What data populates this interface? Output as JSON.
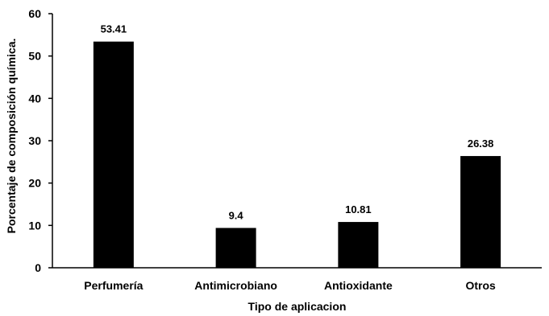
{
  "chart_data": {
    "type": "bar",
    "title": "",
    "xlabel": "Tipo de aplicacion",
    "ylabel": "Porcentaje de composición química.",
    "categories": [
      "Perfumería",
      "Antimicrobiano",
      "Antioxidante",
      "Otros"
    ],
    "values": [
      53.41,
      9.4,
      10.81,
      26.38
    ],
    "data_labels": [
      "53.41",
      "9.4",
      "10.81",
      "26.38"
    ],
    "ylim": [
      0,
      60
    ],
    "yticks": [
      0,
      10,
      20,
      30,
      40,
      50,
      60
    ],
    "grid": false,
    "legend": "none",
    "bar_color": "#000000"
  }
}
